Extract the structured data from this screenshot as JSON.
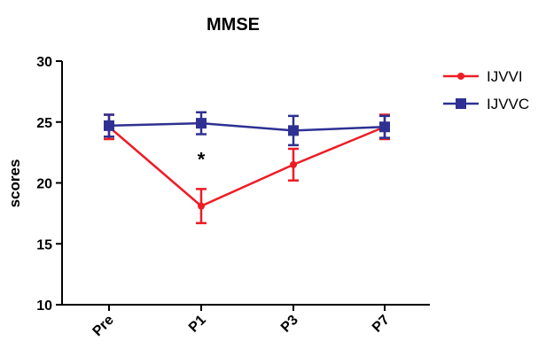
{
  "chart_data": {
    "type": "line",
    "title": "MMSE",
    "xlabel": "",
    "ylabel": "scores",
    "categories": [
      "Pre",
      "P1",
      "P3",
      "P7"
    ],
    "ylim": [
      10,
      30
    ],
    "yticks": [
      10,
      15,
      20,
      25,
      30
    ],
    "grid": false,
    "legend_position": "top-right",
    "series": [
      {
        "name": "IJVVI",
        "color": "#ee1c25",
        "marker": "circle",
        "values": [
          24.6,
          18.1,
          21.5,
          24.6
        ],
        "error": [
          1.0,
          1.4,
          1.3,
          1.0
        ]
      },
      {
        "name": "IJVVC",
        "color": "#2e3192",
        "marker": "square",
        "values": [
          24.7,
          24.9,
          24.3,
          24.6
        ],
        "error": [
          0.9,
          0.9,
          1.2,
          0.9
        ]
      }
    ],
    "annotations": [
      {
        "text": "*",
        "category": "P1",
        "y": 22.1
      }
    ]
  }
}
